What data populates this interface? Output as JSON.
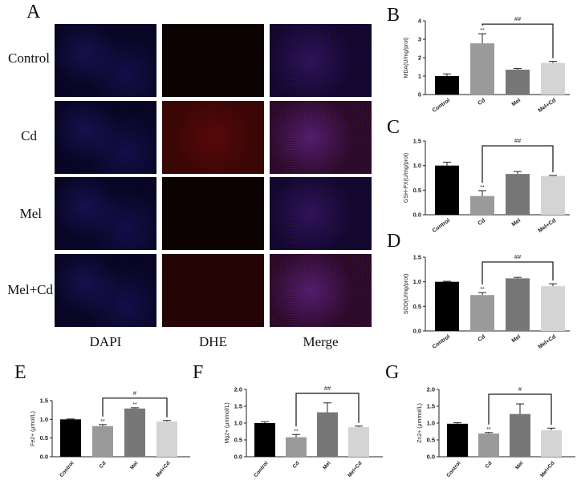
{
  "figure": {
    "panel_letters": [
      "A",
      "B",
      "C",
      "D",
      "E",
      "F",
      "G"
    ],
    "panel_a": {
      "rows": [
        "Control",
        "Cd",
        "Mel",
        "Mel+Cd"
      ],
      "columns": [
        "DAPI",
        "DHE",
        "Merge"
      ]
    }
  },
  "chart_data": [
    {
      "panel": "B",
      "type": "bar",
      "categories": [
        "Control",
        "Cd",
        "Mel",
        "Mel+Cd"
      ],
      "values": [
        1.0,
        2.78,
        1.35,
        1.72
      ],
      "errors": [
        0.12,
        0.52,
        0.06,
        0.08
      ],
      "colors": [
        "#000000",
        "#9a9a9a",
        "#777777",
        "#d4d4d4"
      ],
      "ylabel": "MDA(U/mg/prot)",
      "ylim": [
        0,
        4
      ],
      "yticks": [
        0,
        1,
        2,
        3,
        4
      ],
      "annotations": [
        {
          "bar": "Cd",
          "text": "**"
        }
      ],
      "bracket": {
        "from": "Cd",
        "to": "Mel+Cd",
        "text": "##"
      }
    },
    {
      "panel": "C",
      "type": "bar",
      "categories": [
        "Control",
        "Cd",
        "Mel",
        "Mel+Cd"
      ],
      "values": [
        1.0,
        0.38,
        0.83,
        0.79
      ],
      "errors": [
        0.07,
        0.11,
        0.05,
        0.01
      ],
      "colors": [
        "#000000",
        "#9a9a9a",
        "#777777",
        "#d4d4d4"
      ],
      "ylabel": "GSH-PX(U/mg/prot)",
      "ylim": [
        0,
        1.5
      ],
      "yticks": [
        "0.0",
        "0.5",
        "1.0",
        "1.5"
      ],
      "annotations": [
        {
          "bar": "Cd",
          "text": "**"
        }
      ],
      "bracket": {
        "from": "Cd",
        "to": "Mel+Cd",
        "text": "##"
      }
    },
    {
      "panel": "D",
      "type": "bar",
      "categories": [
        "Control",
        "Cd",
        "Mel",
        "Mel+Cd"
      ],
      "values": [
        1.0,
        0.73,
        1.07,
        0.91
      ],
      "errors": [
        0.01,
        0.05,
        0.02,
        0.05
      ],
      "colors": [
        "#000000",
        "#9a9a9a",
        "#777777",
        "#d4d4d4"
      ],
      "ylabel": "SOD(U/mg/prot)",
      "ylim": [
        0,
        1.5
      ],
      "yticks": [
        "0.0",
        "0.5",
        "1.0",
        "1.5"
      ],
      "annotations": [
        {
          "bar": "Cd",
          "text": "**"
        }
      ],
      "bracket": {
        "from": "Cd",
        "to": "Mel+Cd",
        "text": "##"
      }
    },
    {
      "panel": "E",
      "type": "bar",
      "categories": [
        "Control",
        "Cd",
        "Mel",
        "Mel+Cd"
      ],
      "values": [
        1.0,
        0.82,
        1.29,
        0.94
      ],
      "errors": [
        0.01,
        0.04,
        0.02,
        0.03
      ],
      "colors": [
        "#000000",
        "#9a9a9a",
        "#777777",
        "#d4d4d4"
      ],
      "ylabel": "Fe2+ (μmol/L)",
      "ylim": [
        0,
        1.5
      ],
      "yticks": [
        "0.0",
        "0.5",
        "1.0",
        "1.5"
      ],
      "annotations": [
        {
          "bar": "Cd",
          "text": "**"
        },
        {
          "bar": "Mel",
          "text": "**"
        }
      ],
      "bracket": {
        "from": "Cd",
        "to": "Mel+Cd",
        "text": "#"
      }
    },
    {
      "panel": "F",
      "type": "bar",
      "categories": [
        "Control",
        "Cd",
        "Mel",
        "Mel+Cd"
      ],
      "values": [
        1.0,
        0.58,
        1.32,
        0.88
      ],
      "errors": [
        0.04,
        0.08,
        0.28,
        0.03
      ],
      "colors": [
        "#000000",
        "#9a9a9a",
        "#777777",
        "#d4d4d4"
      ],
      "ylabel": "Mg2+ (μmmol/L)",
      "ylim": [
        0,
        2.0
      ],
      "yticks": [
        "0.0",
        "0.5",
        "1.0",
        "1.5",
        "2.0"
      ],
      "annotations": [
        {
          "bar": "Cd",
          "text": "**"
        }
      ],
      "bracket": {
        "from": "Cd",
        "to": "Mel+Cd",
        "text": "##"
      }
    },
    {
      "panel": "G",
      "type": "bar",
      "categories": [
        "Control",
        "Cd",
        "Mel",
        "Mel+Cd"
      ],
      "values": [
        0.98,
        0.69,
        1.27,
        0.79
      ],
      "errors": [
        0.03,
        0.03,
        0.3,
        0.06
      ],
      "colors": [
        "#000000",
        "#9a9a9a",
        "#777777",
        "#d4d4d4"
      ],
      "ylabel": "Zn2+ (μmmol/L)",
      "ylim": [
        0,
        2.0
      ],
      "yticks": [
        "0.0",
        "0.5",
        "1.0",
        "1.5",
        "2.0"
      ],
      "annotations": [
        {
          "bar": "Cd",
          "text": "**"
        }
      ],
      "bracket": {
        "from": "Cd",
        "to": "Mel+Cd",
        "text": "#"
      }
    }
  ]
}
